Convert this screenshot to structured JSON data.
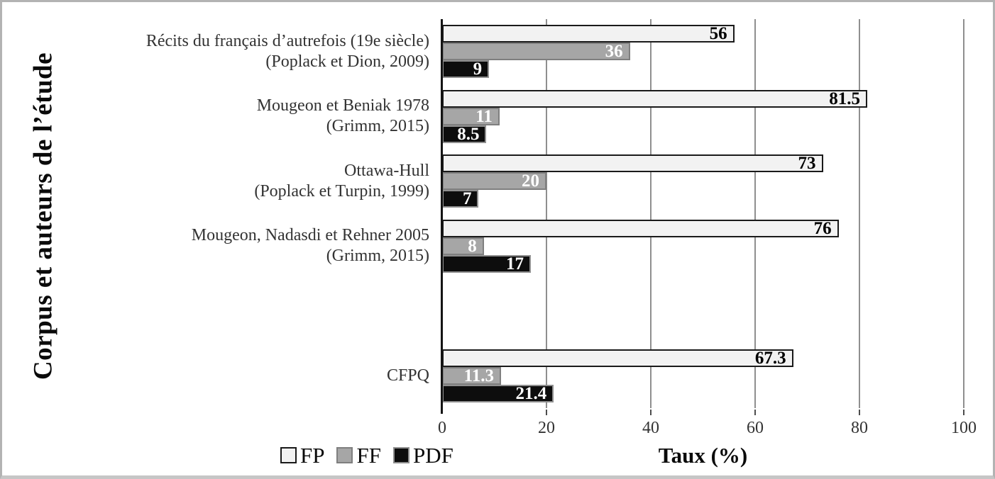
{
  "chart_data": {
    "type": "bar",
    "orientation": "horizontal",
    "xlabel": "Taux (%)",
    "ylabel": "Corpus et auteurs de l’étude",
    "xlim": [
      0,
      100
    ],
    "xticks": [
      0,
      20,
      40,
      60,
      80,
      100
    ],
    "grid": "vertical gridlines every 20, grey",
    "legend_position": "bottom-left",
    "value_labels": "inside right end of each bar",
    "total_slots": 6,
    "categories": [
      {
        "lines": [
          "Récits du français d’autrefois (19e siècle)",
          "(Poplack et Dion, 2009)"
        ],
        "slot": 0
      },
      {
        "lines": [
          "Mougeon et Beniak 1978",
          "(Grimm, 2015)"
        ],
        "slot": 1
      },
      {
        "lines": [
          "Ottawa-Hull",
          "(Poplack et Turpin, 1999)"
        ],
        "slot": 2
      },
      {
        "lines": [
          "Mougeon, Nadasdi et Rehner 2005",
          "(Grimm, 2015)"
        ],
        "slot": 3
      },
      {
        "lines": [
          "CFPQ"
        ],
        "slot": 5
      }
    ],
    "series": [
      {
        "name": "FP",
        "fill": "#f2f2f2",
        "border": "#1a1a1a",
        "label_color": "#000000",
        "values": [
          56,
          81.5,
          73,
          76,
          67.3
        ]
      },
      {
        "name": "FF",
        "fill": "#a6a6a6",
        "border": "#7f7f7f",
        "label_color": "#ffffff",
        "values": [
          36,
          11,
          20,
          8,
          11.3
        ]
      },
      {
        "name": "PDF",
        "fill": "#0d0d0d",
        "border": "#8f8f8f",
        "label_color": "#ffffff",
        "values": [
          9,
          8.5,
          7,
          17,
          21.4
        ]
      }
    ]
  }
}
